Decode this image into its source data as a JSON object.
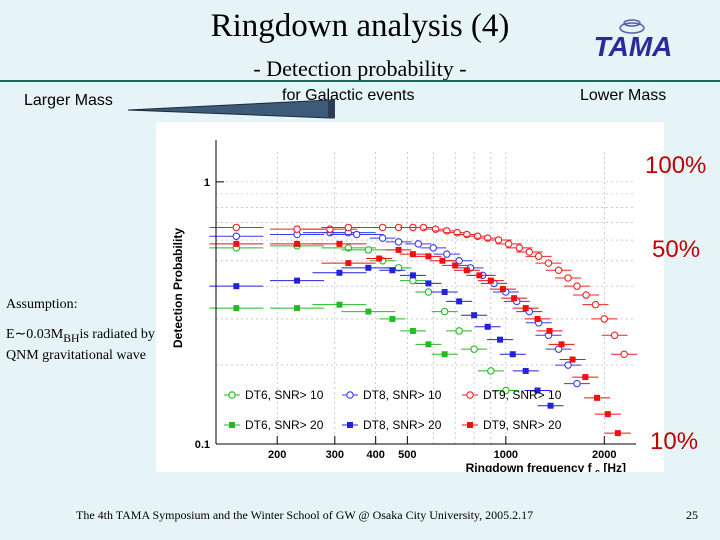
{
  "slide": {
    "title": "Ringdown analysis (4)",
    "subtitle": "- Detection probability -",
    "footer": "The 4th TAMA Symposium and the Winter School of GW @ Osaka City University, 2005.2.17",
    "page_number": "25",
    "logo_text": "TAMA",
    "larger_mass": "Larger Mass",
    "for_galactic": "for Galactic events",
    "lower_mass": "Lower Mass",
    "pct_100": "100%",
    "pct_50": "50%",
    "pct_10": "10%",
    "assumption_label": "Assumption:",
    "assumption_prefix": "E∼0.03M",
    "assumption_sub": "BH",
    "assumption_suffix": "is radiated by QNM gravitational wave",
    "colors": {
      "accent_red": "#c00000",
      "rule": "#1a6a56",
      "background": "#e6f4f8"
    }
  },
  "chart_data": {
    "type": "scatter",
    "xscale": "log",
    "yscale": "log",
    "xlim": [
      130,
      2500
    ],
    "ylim": [
      0.1,
      1.3
    ],
    "xlabel": "Ringdown frequency f",
    "xlabel_sub": "c",
    "xlabel_unit": "[Hz]",
    "ylabel": "Detection Probability",
    "xticks": [
      "200",
      "300",
      "400",
      "500",
      "1000",
      "2000"
    ],
    "xtick_values": [
      200,
      300,
      400,
      500,
      1000,
      2000
    ],
    "yticks": [
      "1",
      "0.1"
    ],
    "ytick_values": [
      1,
      0.1
    ],
    "series": [
      {
        "name": "DT6, SNR> 10",
        "color": "#22bb22",
        "filled": false,
        "x": [
          150,
          230,
          330,
          380,
          420,
          470,
          520,
          580,
          650,
          720,
          800,
          900,
          1000
        ],
        "y": [
          0.56,
          0.57,
          0.56,
          0.55,
          0.5,
          0.47,
          0.42,
          0.38,
          0.32,
          0.27,
          0.23,
          0.19,
          0.16
        ]
      },
      {
        "name": "DT8, SNR> 10",
        "color": "#3a3aee",
        "filled": false,
        "x": [
          150,
          230,
          290,
          330,
          350,
          420,
          470,
          540,
          600,
          660,
          720,
          780,
          850,
          920,
          1000,
          1080,
          1180,
          1260,
          1350,
          1450,
          1550,
          1650
        ],
        "y": [
          0.62,
          0.63,
          0.64,
          0.64,
          0.63,
          0.61,
          0.59,
          0.58,
          0.56,
          0.53,
          0.5,
          0.47,
          0.44,
          0.41,
          0.38,
          0.35,
          0.32,
          0.29,
          0.26,
          0.23,
          0.2,
          0.17
        ]
      },
      {
        "name": "DT9, SNR> 10",
        "color": "#ee2222",
        "filled": false,
        "x": [
          150,
          230,
          290,
          330,
          420,
          470,
          520,
          560,
          610,
          660,
          710,
          760,
          820,
          880,
          950,
          1020,
          1100,
          1180,
          1260,
          1350,
          1450,
          1550,
          1650,
          1760,
          1880,
          2000,
          2150,
          2300
        ],
        "y": [
          0.67,
          0.66,
          0.66,
          0.67,
          0.67,
          0.67,
          0.67,
          0.67,
          0.66,
          0.65,
          0.64,
          0.63,
          0.62,
          0.61,
          0.6,
          0.58,
          0.56,
          0.54,
          0.52,
          0.49,
          0.46,
          0.43,
          0.4,
          0.37,
          0.34,
          0.3,
          0.26,
          0.22
        ]
      },
      {
        "name": "DT6, SNR> 20",
        "color": "#22bb22",
        "filled": true,
        "x": [
          150,
          230,
          310,
          380,
          450,
          520,
          580,
          650
        ],
        "y": [
          0.33,
          0.33,
          0.34,
          0.32,
          0.3,
          0.27,
          0.24,
          0.22
        ]
      },
      {
        "name": "DT8, SNR> 20",
        "color": "#2222dd",
        "filled": true,
        "x": [
          150,
          230,
          310,
          380,
          450,
          520,
          580,
          650,
          720,
          800,
          880,
          960,
          1050,
          1150,
          1250,
          1370
        ],
        "y": [
          0.4,
          0.42,
          0.45,
          0.47,
          0.46,
          0.44,
          0.41,
          0.38,
          0.35,
          0.31,
          0.28,
          0.25,
          0.22,
          0.19,
          0.16,
          0.14
        ]
      },
      {
        "name": "DT9, SNR> 20",
        "color": "#ee1111",
        "filled": true,
        "x": [
          150,
          230,
          310,
          330,
          410,
          470,
          520,
          580,
          640,
          700,
          760,
          830,
          900,
          980,
          1060,
          1150,
          1250,
          1360,
          1480,
          1600,
          1750,
          1900,
          2050,
          2200
        ],
        "y": [
          0.58,
          0.58,
          0.58,
          0.49,
          0.51,
          0.55,
          0.53,
          0.52,
          0.5,
          0.48,
          0.46,
          0.44,
          0.42,
          0.39,
          0.36,
          0.33,
          0.3,
          0.27,
          0.24,
          0.21,
          0.18,
          0.15,
          0.13,
          0.11
        ]
      }
    ],
    "legend_placement": "lower-left"
  }
}
